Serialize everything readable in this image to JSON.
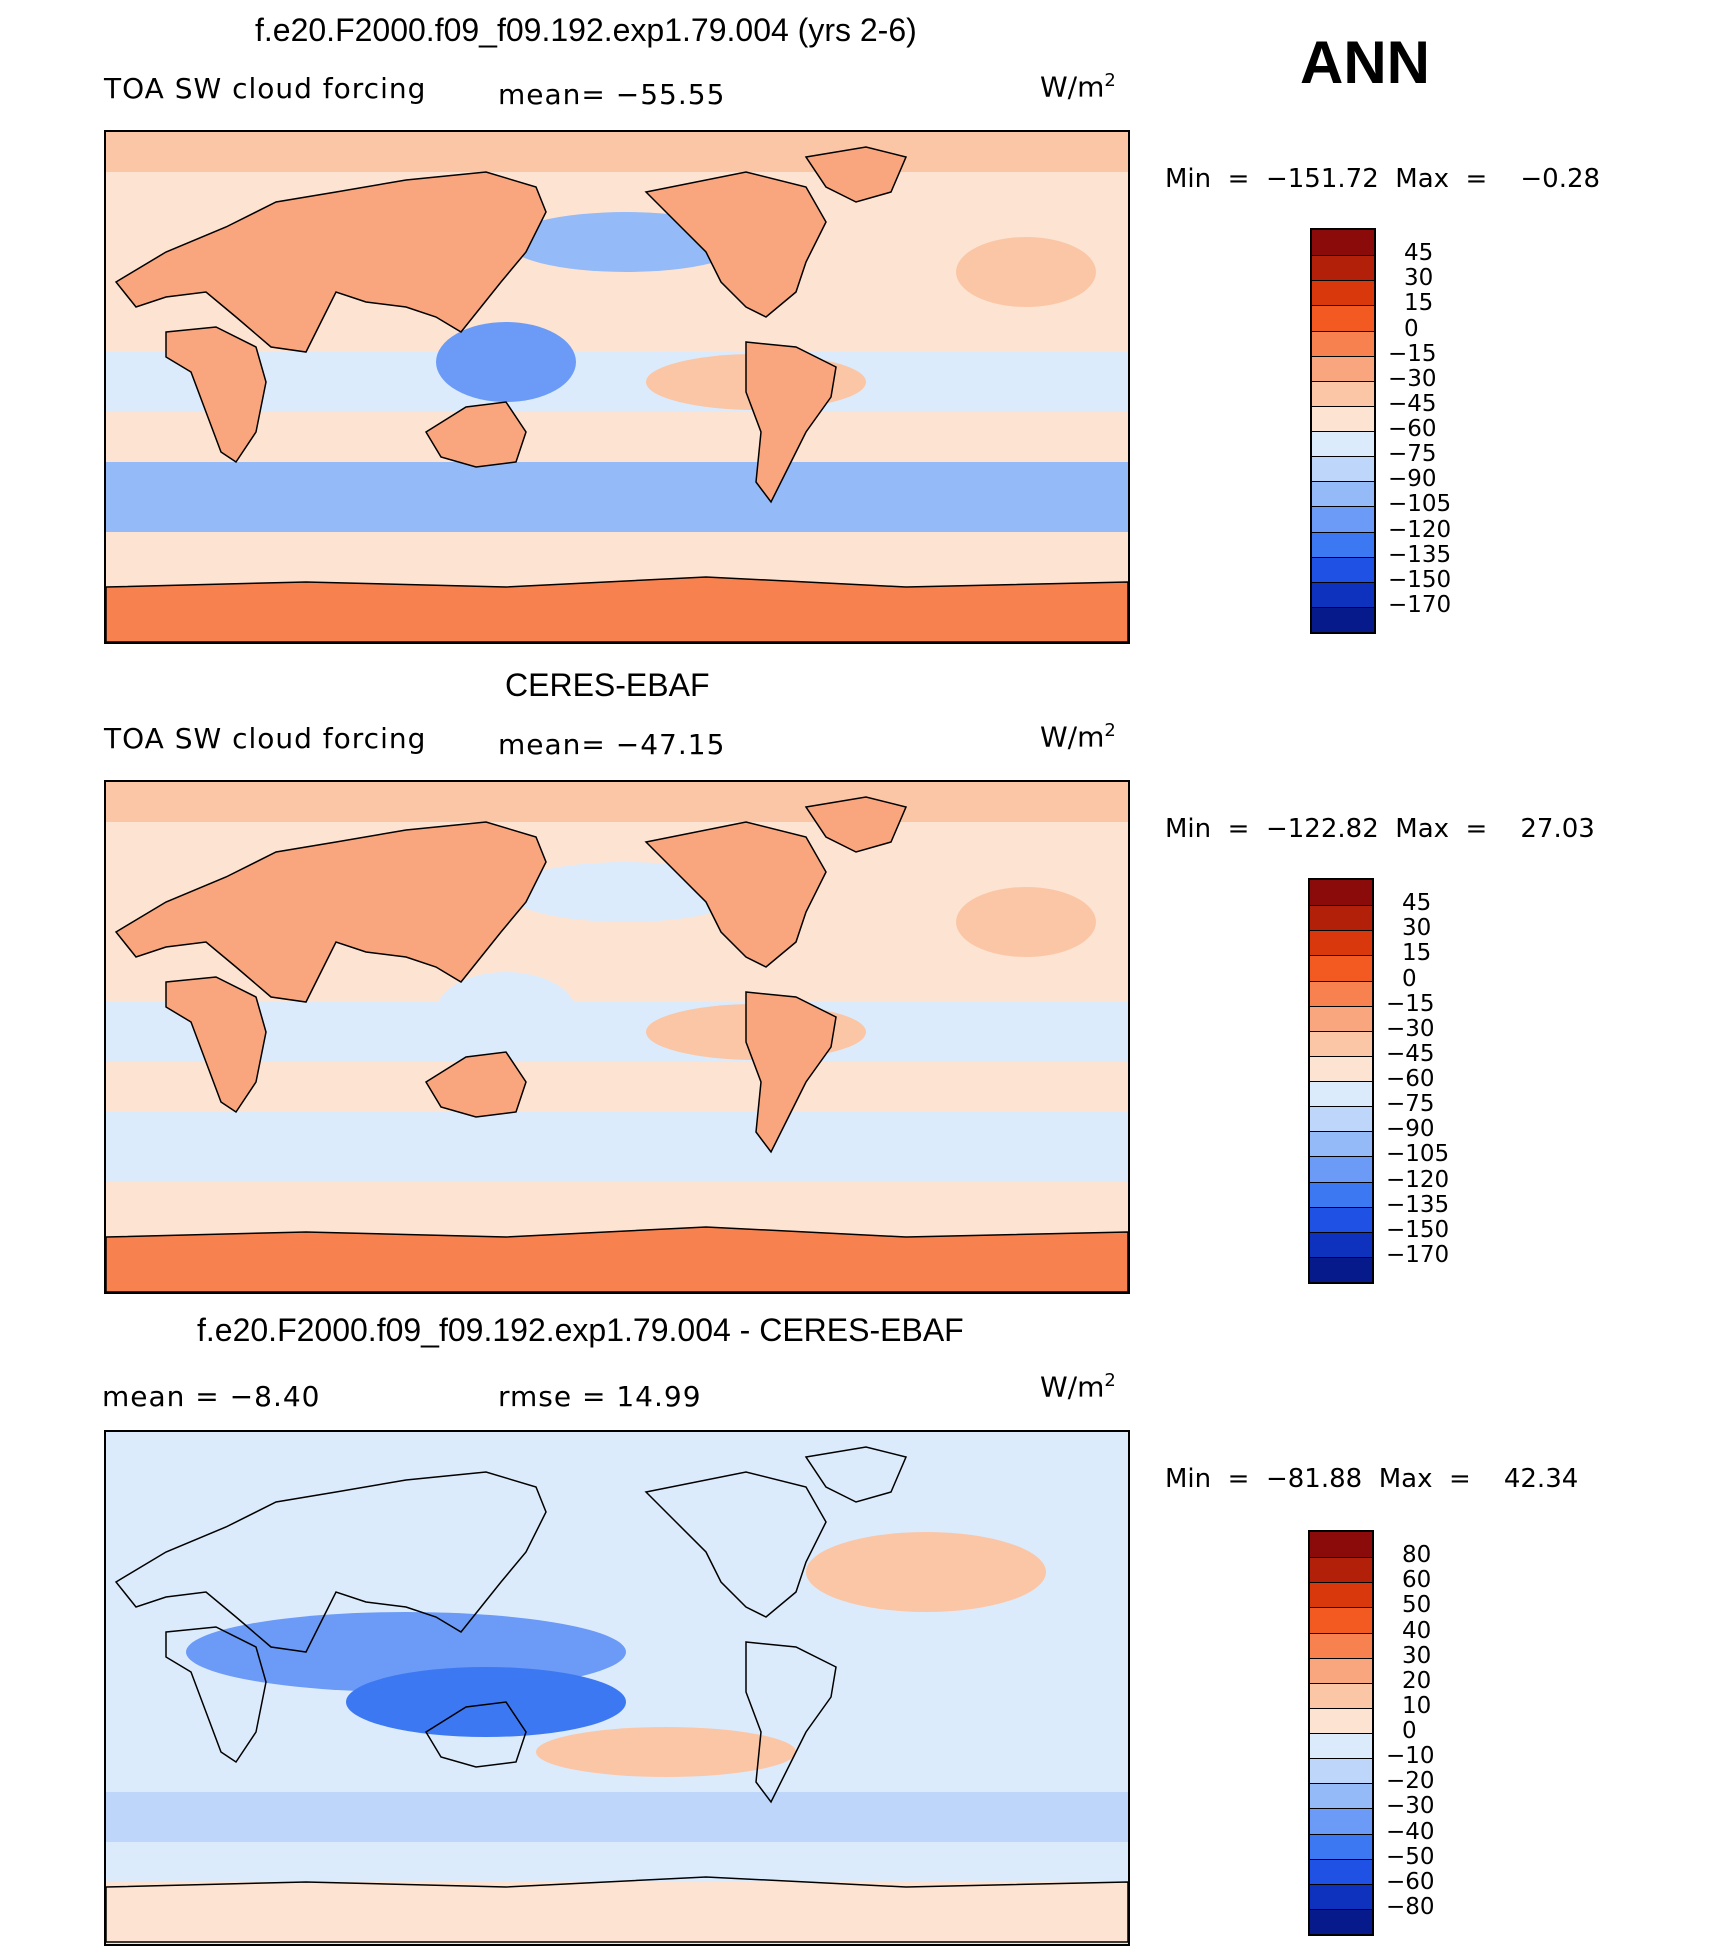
{
  "season": "ANN",
  "panels": [
    {
      "title": "f.e20.F2000.f09_f09.192.exp1.79.004 (yrs 2-6)",
      "variable": "TOA SW cloud forcing",
      "stat1": "mean=  −55.55",
      "stat2": "",
      "units_base": "W/m",
      "units_exp": "2",
      "minmax": "Min  =  −151.72  Max  =    −0.28",
      "kind": "model"
    },
    {
      "title": "CERES-EBAF",
      "variable": "TOA SW cloud forcing",
      "stat1": "mean=  −47.15",
      "stat2": "",
      "units_base": "W/m",
      "units_exp": "2",
      "minmax": "Min  =  −122.82  Max  =    27.03",
      "kind": "obs"
    },
    {
      "title": "f.e20.F2000.f09_f09.192.exp1.79.004 - CERES-EBAF",
      "variable": "mean  =    −8.40",
      "stat1": "rmse  =    14.99",
      "stat2": "",
      "units_base": "W/m",
      "units_exp": "2",
      "minmax": "Min  =  −81.88  Max  =    42.34",
      "kind": "diff"
    }
  ],
  "colorbars": [
    {
      "labels": [
        "45",
        "30",
        "15",
        "0",
        "−15",
        "−30",
        "−45",
        "−60",
        "−75",
        "−90",
        "−105",
        "−120",
        "−135",
        "−150",
        "−170"
      ],
      "colors": [
        "#8b0a0a",
        "#b3200a",
        "#d8380c",
        "#f35a22",
        "#f7824f",
        "#f9a57d",
        "#fbc6a6",
        "#fde4d2",
        "#dcebfb",
        "#bdd6fa",
        "#94baf8",
        "#6b9bf6",
        "#3d78f3",
        "#1f52e4",
        "#0e32bd",
        "#071a8c"
      ]
    },
    {
      "labels": [
        "45",
        "30",
        "15",
        "0",
        "−15",
        "−30",
        "−45",
        "−60",
        "−75",
        "−90",
        "−105",
        "−120",
        "−135",
        "−150",
        "−170"
      ],
      "colors": [
        "#8b0a0a",
        "#b3200a",
        "#d8380c",
        "#f35a22",
        "#f7824f",
        "#f9a57d",
        "#fbc6a6",
        "#fde4d2",
        "#dcebfb",
        "#bdd6fa",
        "#94baf8",
        "#6b9bf6",
        "#3d78f3",
        "#1f52e4",
        "#0e32bd",
        "#071a8c"
      ]
    },
    {
      "labels": [
        "80",
        "60",
        "50",
        "40",
        "30",
        "20",
        "10",
        "0",
        "−10",
        "−20",
        "−30",
        "−40",
        "−50",
        "−60",
        "−80"
      ],
      "colors": [
        "#8b0a0a",
        "#b3200a",
        "#d8380c",
        "#f35a22",
        "#f7824f",
        "#f9a57d",
        "#fbc6a6",
        "#fde4d2",
        "#dcebfb",
        "#bdd6fa",
        "#94baf8",
        "#6b9bf6",
        "#3d78f3",
        "#1f52e4",
        "#0e32bd",
        "#071a8c"
      ]
    }
  ]
}
